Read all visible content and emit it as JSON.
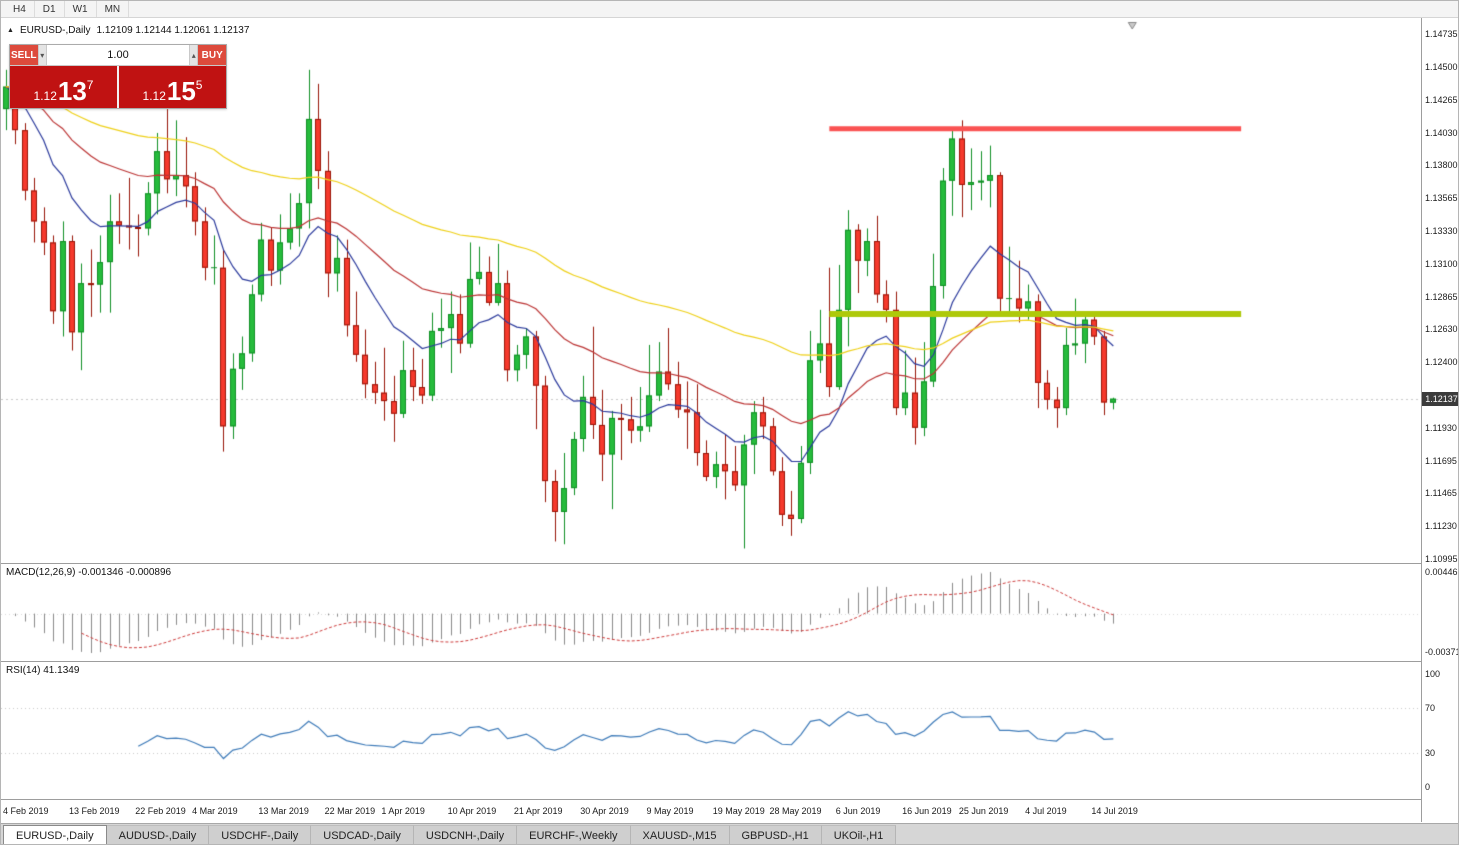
{
  "toolbar": {
    "timeframes": [
      "H4",
      "D1",
      "W1",
      "MN"
    ]
  },
  "chart": {
    "symbol_title": "EURUSD-,Daily",
    "ohlc_text": "1.12109 1.12144 1.12061 1.12137",
    "open": "1.12109",
    "high": "1.12144",
    "low": "1.12061",
    "close": "1.12137",
    "current_price": "1.12137",
    "price_axis_labels": [
      "1.14735",
      "1.14500",
      "1.14265",
      "1.14030",
      "1.13800",
      "1.13565",
      "1.13330",
      "1.13100",
      "1.12865",
      "1.12630",
      "1.12400",
      "1.11930",
      "1.11695",
      "1.11465",
      "1.11230",
      "1.10995"
    ]
  },
  "one_click": {
    "sell_label": "SELL",
    "buy_label": "BUY",
    "volume": "1.00",
    "sell_price": {
      "prefix": "1.12",
      "big": "13",
      "sup": "7"
    },
    "buy_price": {
      "prefix": "1.12",
      "big": "15",
      "sup": "5"
    }
  },
  "macd_panel": {
    "label": "MACD(12,26,9) -0.001346 -0.000896",
    "axis_labels": [
      "0.00446",
      "-0.00371"
    ]
  },
  "rsi_panel": {
    "label": "RSI(14) 41.1349",
    "value": "41.1349",
    "axis_labels": [
      "100",
      "70",
      "30",
      "0"
    ]
  },
  "tabs": [
    {
      "label": "EURUSD-,Daily",
      "active": true
    },
    {
      "label": "AUDUSD-,Daily",
      "active": false
    },
    {
      "label": "USDCHF-,Daily",
      "active": false
    },
    {
      "label": "USDCAD-,Daily",
      "active": false
    },
    {
      "label": "USDCNH-,Daily",
      "active": false
    },
    {
      "label": "EURCHF-,Weekly",
      "active": false
    },
    {
      "label": "XAUUSD-,M15",
      "active": false
    },
    {
      "label": "GBPUSD-,H1",
      "active": false
    },
    {
      "label": "UKOil-,H1",
      "active": false
    }
  ],
  "chart_data": {
    "type": "candlestick",
    "symbol": "EURUSD-",
    "timeframe": "Daily",
    "ylim": [
      1.10995,
      1.14735
    ],
    "visible_slots": 150,
    "candles": [
      [
        1.142,
        1.1448,
        1.1405,
        1.1436
      ],
      [
        1.1436,
        1.144,
        1.1395,
        1.1405
      ],
      [
        1.1405,
        1.141,
        1.1355,
        1.1362
      ],
      [
        1.1362,
        1.1371,
        1.1325,
        1.134
      ],
      [
        1.134,
        1.135,
        1.1316,
        1.1325
      ],
      [
        1.1325,
        1.133,
        1.1267,
        1.1276
      ],
      [
        1.1276,
        1.134,
        1.1258,
        1.1326
      ],
      [
        1.1326,
        1.133,
        1.1248,
        1.1261
      ],
      [
        1.1261,
        1.131,
        1.1234,
        1.1296
      ],
      [
        1.1296,
        1.132,
        1.1272,
        1.1295
      ],
      [
        1.1295,
        1.133,
        1.1275,
        1.1311
      ],
      [
        1.1311,
        1.1359,
        1.1275,
        1.134
      ],
      [
        1.134,
        1.136,
        1.1324,
        1.1337
      ],
      [
        1.1337,
        1.1371,
        1.132,
        1.1336
      ],
      [
        1.1336,
        1.1345,
        1.1315,
        1.1335
      ],
      [
        1.1335,
        1.1368,
        1.133,
        1.136
      ],
      [
        1.136,
        1.1403,
        1.1345,
        1.139
      ],
      [
        1.139,
        1.142,
        1.136,
        1.137
      ],
      [
        1.137,
        1.1412,
        1.1358,
        1.1373
      ],
      [
        1.1373,
        1.14,
        1.135,
        1.1365
      ],
      [
        1.1365,
        1.1375,
        1.133,
        1.134
      ],
      [
        1.134,
        1.135,
        1.1298,
        1.1307
      ],
      [
        1.1307,
        1.133,
        1.1295,
        1.1307
      ],
      [
        1.1307,
        1.132,
        1.1176,
        1.1194
      ],
      [
        1.1194,
        1.1246,
        1.1185,
        1.1235
      ],
      [
        1.1235,
        1.1258,
        1.122,
        1.1246
      ],
      [
        1.1246,
        1.1295,
        1.124,
        1.1288
      ],
      [
        1.1288,
        1.1339,
        1.1283,
        1.1327
      ],
      [
        1.1327,
        1.1336,
        1.1294,
        1.1305
      ],
      [
        1.1305,
        1.1345,
        1.1295,
        1.1325
      ],
      [
        1.1325,
        1.136,
        1.132,
        1.1335
      ],
      [
        1.1335,
        1.136,
        1.1322,
        1.1353
      ],
      [
        1.1353,
        1.1448,
        1.1335,
        1.1413
      ],
      [
        1.1413,
        1.1438,
        1.1363,
        1.1376
      ],
      [
        1.1376,
        1.139,
        1.1286,
        1.1303
      ],
      [
        1.1303,
        1.133,
        1.129,
        1.1314
      ],
      [
        1.1314,
        1.1327,
        1.1258,
        1.1266
      ],
      [
        1.1266,
        1.129,
        1.124,
        1.1245
      ],
      [
        1.1245,
        1.1263,
        1.1214,
        1.1224
      ],
      [
        1.1224,
        1.124,
        1.121,
        1.1218
      ],
      [
        1.1218,
        1.125,
        1.1198,
        1.1212
      ],
      [
        1.1212,
        1.123,
        1.1183,
        1.1203
      ],
      [
        1.1203,
        1.1255,
        1.12,
        1.1234
      ],
      [
        1.1234,
        1.125,
        1.1212,
        1.1222
      ],
      [
        1.1222,
        1.1242,
        1.121,
        1.1216
      ],
      [
        1.1216,
        1.1275,
        1.1212,
        1.1262
      ],
      [
        1.1262,
        1.1285,
        1.125,
        1.1264
      ],
      [
        1.1264,
        1.129,
        1.1232,
        1.1274
      ],
      [
        1.1274,
        1.1288,
        1.1246,
        1.1253
      ],
      [
        1.1253,
        1.1325,
        1.125,
        1.1299
      ],
      [
        1.1299,
        1.1322,
        1.1295,
        1.1304
      ],
      [
        1.1304,
        1.1315,
        1.128,
        1.1282
      ],
      [
        1.1282,
        1.1324,
        1.128,
        1.1296
      ],
      [
        1.1296,
        1.1305,
        1.1226,
        1.1234
      ],
      [
        1.1234,
        1.1252,
        1.1226,
        1.1245
      ],
      [
        1.1245,
        1.1264,
        1.1235,
        1.1258
      ],
      [
        1.1258,
        1.1262,
        1.1192,
        1.1223
      ],
      [
        1.1223,
        1.123,
        1.114,
        1.1155
      ],
      [
        1.1155,
        1.1163,
        1.1112,
        1.1133
      ],
      [
        1.1133,
        1.1175,
        1.111,
        1.115
      ],
      [
        1.115,
        1.119,
        1.1145,
        1.1185
      ],
      [
        1.1185,
        1.123,
        1.1176,
        1.1215
      ],
      [
        1.1215,
        1.1265,
        1.1185,
        1.1195
      ],
      [
        1.1195,
        1.122,
        1.1155,
        1.1174
      ],
      [
        1.1174,
        1.1205,
        1.1135,
        1.12
      ],
      [
        1.12,
        1.121,
        1.117,
        1.1199
      ],
      [
        1.1199,
        1.1215,
        1.1182,
        1.1191
      ],
      [
        1.1191,
        1.1222,
        1.1183,
        1.1194
      ],
      [
        1.1194,
        1.1252,
        1.119,
        1.1216
      ],
      [
        1.1216,
        1.1254,
        1.1212,
        1.1233
      ],
      [
        1.1233,
        1.1264,
        1.122,
        1.1224
      ],
      [
        1.1224,
        1.124,
        1.12,
        1.1206
      ],
      [
        1.1206,
        1.1226,
        1.1178,
        1.1204
      ],
      [
        1.1204,
        1.1224,
        1.1166,
        1.1175
      ],
      [
        1.1175,
        1.1184,
        1.1155,
        1.1158
      ],
      [
        1.1158,
        1.1176,
        1.115,
        1.1167
      ],
      [
        1.1167,
        1.1188,
        1.1142,
        1.1162
      ],
      [
        1.1162,
        1.118,
        1.1148,
        1.1152
      ],
      [
        1.1152,
        1.1188,
        1.1107,
        1.1181
      ],
      [
        1.1181,
        1.1212,
        1.116,
        1.1204
      ],
      [
        1.1204,
        1.1215,
        1.1185,
        1.1194
      ],
      [
        1.1194,
        1.12,
        1.1159,
        1.1162
      ],
      [
        1.1162,
        1.1172,
        1.1123,
        1.1131
      ],
      [
        1.1131,
        1.1148,
        1.1116,
        1.1128
      ],
      [
        1.1128,
        1.118,
        1.1125,
        1.1168
      ],
      [
        1.1168,
        1.1262,
        1.116,
        1.1241
      ],
      [
        1.1241,
        1.1277,
        1.1232,
        1.1253
      ],
      [
        1.1253,
        1.1307,
        1.1215,
        1.1222
      ],
      [
        1.1222,
        1.1309,
        1.122,
        1.1277
      ],
      [
        1.1277,
        1.1348,
        1.1251,
        1.1334
      ],
      [
        1.1334,
        1.1338,
        1.1289,
        1.1312
      ],
      [
        1.1312,
        1.1335,
        1.1301,
        1.1326
      ],
      [
        1.1326,
        1.1344,
        1.1282,
        1.1288
      ],
      [
        1.1288,
        1.1298,
        1.1268,
        1.1277
      ],
      [
        1.1277,
        1.129,
        1.1202,
        1.1207
      ],
      [
        1.1207,
        1.1248,
        1.1202,
        1.1218
      ],
      [
        1.1218,
        1.1243,
        1.1181,
        1.1193
      ],
      [
        1.1193,
        1.1254,
        1.1187,
        1.1226
      ],
      [
        1.1226,
        1.1317,
        1.1222,
        1.1294
      ],
      [
        1.1294,
        1.1378,
        1.1285,
        1.1369
      ],
      [
        1.1369,
        1.1406,
        1.1344,
        1.1399
      ],
      [
        1.1399,
        1.1412,
        1.1343,
        1.1366
      ],
      [
        1.1366,
        1.1392,
        1.1348,
        1.1368
      ],
      [
        1.1368,
        1.139,
        1.1355,
        1.1369
      ],
      [
        1.1369,
        1.1394,
        1.135,
        1.1373
      ],
      [
        1.1373,
        1.1375,
        1.1275,
        1.1285
      ],
      [
        1.1285,
        1.1322,
        1.1275,
        1.1285
      ],
      [
        1.1285,
        1.1312,
        1.1268,
        1.1278
      ],
      [
        1.1278,
        1.1295,
        1.127,
        1.1283
      ],
      [
        1.1283,
        1.1288,
        1.1207,
        1.1225
      ],
      [
        1.1225,
        1.1234,
        1.1206,
        1.1213
      ],
      [
        1.1213,
        1.1222,
        1.1193,
        1.1207
      ],
      [
        1.1207,
        1.1264,
        1.1202,
        1.1252
      ],
      [
        1.1252,
        1.1285,
        1.1245,
        1.1253
      ],
      [
        1.1253,
        1.1276,
        1.1239,
        1.127
      ],
      [
        1.127,
        1.1275,
        1.1252,
        1.1258
      ],
      [
        1.1258,
        1.1262,
        1.1202,
        1.1211
      ],
      [
        1.12109,
        1.12144,
        1.12061,
        1.12137
      ]
    ],
    "date_ticks": [
      {
        "label": "4 Feb 2019",
        "index": 0
      },
      {
        "label": "13 Feb 2019",
        "index": 7
      },
      {
        "label": "22 Feb 2019",
        "index": 14
      },
      {
        "label": "4 Mar 2019",
        "index": 20
      },
      {
        "label": "13 Mar 2019",
        "index": 27
      },
      {
        "label": "22 Mar 2019",
        "index": 34
      },
      {
        "label": "1 Apr 2019",
        "index": 40
      },
      {
        "label": "10 Apr 2019",
        "index": 47
      },
      {
        "label": "21 Apr 2019",
        "index": 54
      },
      {
        "label": "30 Apr 2019",
        "index": 61
      },
      {
        "label": "9 May 2019",
        "index": 68
      },
      {
        "label": "19 May 2019",
        "index": 75
      },
      {
        "label": "28 May 2019",
        "index": 81
      },
      {
        "label": "6 Jun 2019",
        "index": 88
      },
      {
        "label": "16 Jun 2019",
        "index": 95
      },
      {
        "label": "25 Jun 2019",
        "index": 101
      },
      {
        "label": "4 Jul 2019",
        "index": 108
      },
      {
        "label": "14 Jul 2019",
        "index": 115
      }
    ],
    "moving_averages": [
      {
        "period": 13,
        "color": "#2b3a9c"
      },
      {
        "period": 34,
        "color": "#bb3434"
      },
      {
        "period": 75,
        "color": "#eed018"
      }
    ],
    "overlays": {
      "resistance_line": {
        "price": 1.1406,
        "x1_index": 87.5,
        "x2_index": 131,
        "color": "#fa5252",
        "width": 5
      },
      "support_line": {
        "price": 1.1274,
        "x1_index": 87.5,
        "x2_index": 131,
        "color": "#aec90a",
        "width": 6
      }
    },
    "macd": {
      "fast": 12,
      "slow": 26,
      "signal": 9,
      "histogram_color": "#8a8a8a",
      "signal_color": "#cc3a3a"
    },
    "rsi": {
      "period": 14,
      "color": "#3d7ab8",
      "levels": [
        70,
        30
      ]
    },
    "colors": {
      "up": "#26bb3c",
      "up_wick": "#0f8f24",
      "down": "#f5392c",
      "down_wick": "#971407",
      "bid_line": "#c9c9c9",
      "badge_bg": "#3b3b3b"
    }
  }
}
